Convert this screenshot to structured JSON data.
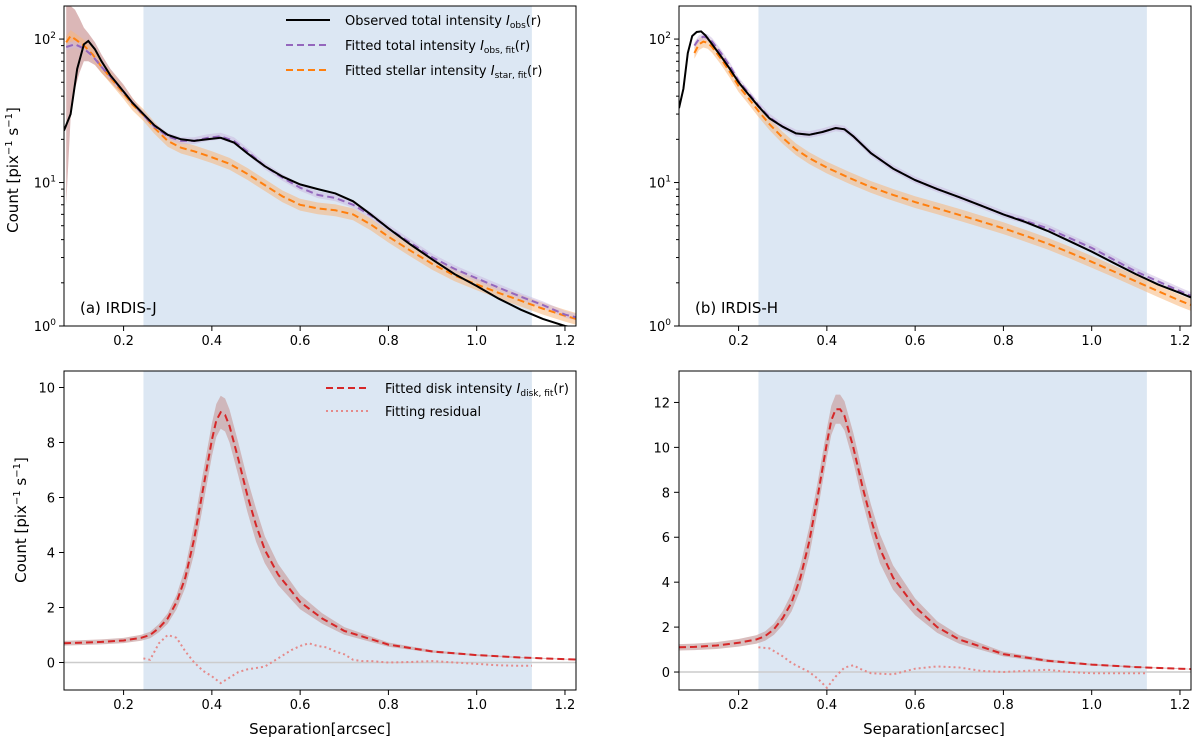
{
  "figure": {
    "xlabel": "Separation[arcsec]",
    "ylabel_parts": {
      "count": "Count [pix",
      "exp": "−1",
      "s": " s",
      "end": "]"
    },
    "colors": {
      "shade": "#dce7f3",
      "observed": "#000000",
      "fitted_total": "#9467bd",
      "fitted_star": "#ff7f0e",
      "fitted_star_band": "#f7b77a",
      "observed_band": "#bd7b7b",
      "disk": "#d62728",
      "disk_band": "#c9a3a3",
      "residual": "#e58a8a",
      "zero_line": "#cccccc"
    }
  },
  "legend_top": [
    {
      "key": "observed",
      "text": "Observed total intensity ",
      "sym": "I",
      "sub": "obs",
      "arg": "(r)"
    },
    {
      "key": "fitted_total",
      "text": "Fitted total intensity ",
      "sym": "I",
      "sub": "obs, fit",
      "arg": "(r)"
    },
    {
      "key": "fitted_star",
      "text": "Fitted stellar intensity ",
      "sym": "I",
      "sub": "star, fit",
      "arg": "(r)"
    }
  ],
  "legend_bottom": [
    {
      "key": "disk",
      "text": "Fitted disk intensity ",
      "sym": "I",
      "sub": "disk, fit",
      "arg": "(r)"
    },
    {
      "key": "residual",
      "text": "Fitting residual",
      "sym": "",
      "sub": "",
      "arg": ""
    }
  ],
  "chart_data": [
    {
      "type": "line",
      "panel": "top-left",
      "label": "(a) IRDIS-J",
      "xlim": [
        0.065,
        1.225
      ],
      "ylim": [
        1,
        170
      ],
      "yscale": "log",
      "xticks": [
        "0.2",
        "0.4",
        "0.6",
        "0.8",
        "1.0",
        "1.2"
      ],
      "yticks": [
        "10^0",
        "10^1",
        "10^2"
      ],
      "shaded_region": [
        0.245,
        1.125
      ],
      "series": [
        {
          "name": "Observed total intensity",
          "x": [
            0.065,
            0.08,
            0.095,
            0.11,
            0.12,
            0.135,
            0.15,
            0.17,
            0.2,
            0.22,
            0.245,
            0.27,
            0.3,
            0.33,
            0.36,
            0.39,
            0.42,
            0.45,
            0.48,
            0.52,
            0.56,
            0.6,
            0.64,
            0.68,
            0.72,
            0.76,
            0.8,
            0.85,
            0.9,
            0.95,
            1.0,
            1.05,
            1.1,
            1.15,
            1.2,
            1.225
          ],
          "y": [
            23,
            30,
            62,
            92,
            97,
            85,
            70,
            56,
            43,
            36,
            30,
            25,
            21.5,
            20,
            19.5,
            20,
            20.5,
            19,
            16,
            13,
            11,
            9.7,
            9,
            8.4,
            7.4,
            6,
            4.8,
            3.7,
            2.9,
            2.3,
            1.9,
            1.55,
            1.3,
            1.12,
            1.0,
            0.97
          ]
        },
        {
          "name": "Fitted total intensity",
          "x": [
            0.07,
            0.09,
            0.11,
            0.13,
            0.15,
            0.17,
            0.2,
            0.22,
            0.245,
            0.27,
            0.3,
            0.33,
            0.36,
            0.39,
            0.42,
            0.45,
            0.48,
            0.52,
            0.56,
            0.6,
            0.64,
            0.68,
            0.72,
            0.76,
            0.8,
            0.85,
            0.9,
            0.95,
            1.0,
            1.05,
            1.1,
            1.15,
            1.2,
            1.225
          ],
          "y": [
            88,
            92,
            86,
            76,
            64,
            55,
            43,
            36,
            29.5,
            24.5,
            21,
            19.5,
            19.5,
            20.5,
            21,
            19.5,
            16.5,
            13,
            10.8,
            9.2,
            8.2,
            7.8,
            7,
            5.9,
            4.8,
            3.8,
            3.0,
            2.5,
            2.15,
            1.85,
            1.6,
            1.4,
            1.2,
            1.15
          ]
        },
        {
          "name": "Fitted stellar intensity",
          "x": [
            0.07,
            0.08,
            0.09,
            0.11,
            0.13,
            0.15,
            0.17,
            0.2,
            0.22,
            0.245,
            0.27,
            0.3,
            0.33,
            0.36,
            0.4,
            0.44,
            0.48,
            0.52,
            0.56,
            0.6,
            0.64,
            0.68,
            0.72,
            0.76,
            0.8,
            0.85,
            0.9,
            0.95,
            1.0,
            1.05,
            1.1,
            1.15,
            1.2,
            1.225
          ],
          "y": [
            95,
            105,
            100,
            90,
            78,
            64,
            54,
            42,
            35,
            29.5,
            24,
            19.5,
            17.5,
            16.5,
            15,
            13.5,
            11.5,
            9.6,
            8,
            7,
            6.6,
            6.4,
            6,
            5.1,
            4.2,
            3.35,
            2.7,
            2.25,
            1.95,
            1.7,
            1.5,
            1.32,
            1.18,
            1.12
          ]
        }
      ],
      "observed_band": {
        "x": [
          0.07,
          0.08,
          0.09,
          0.1,
          0.11,
          0.12,
          0.135,
          0.15,
          0.17,
          0.2,
          0.22,
          0.245
        ],
        "upper": [
          170,
          170,
          160,
          140,
          120,
          110,
          95,
          78,
          62,
          48,
          39,
          31
        ],
        "lower": [
          7,
          28,
          45,
          58,
          70,
          70,
          66,
          58,
          50,
          40,
          34,
          29
        ]
      }
    },
    {
      "type": "line",
      "panel": "top-right",
      "label": "(b) IRDIS-H",
      "xlim": [
        0.065,
        1.225
      ],
      "ylim": [
        1,
        170
      ],
      "yscale": "log",
      "xticks": [
        "0.2",
        "0.4",
        "0.6",
        "0.8",
        "1.0",
        "1.2"
      ],
      "yticks": [
        "10^0",
        "10^1",
        "10^2"
      ],
      "shaded_region": [
        0.245,
        1.125
      ],
      "series": [
        {
          "name": "Observed total intensity",
          "x": [
            0.065,
            0.075,
            0.085,
            0.095,
            0.105,
            0.115,
            0.125,
            0.14,
            0.16,
            0.18,
            0.2,
            0.22,
            0.245,
            0.27,
            0.3,
            0.33,
            0.36,
            0.39,
            0.42,
            0.44,
            0.46,
            0.5,
            0.55,
            0.6,
            0.65,
            0.7,
            0.75,
            0.8,
            0.85,
            0.9,
            0.95,
            1.0,
            1.05,
            1.1,
            1.15,
            1.2,
            1.225
          ],
          "y": [
            33,
            45,
            80,
            105,
            112,
            113,
            106,
            92,
            76,
            62,
            50,
            42,
            34,
            28,
            24.5,
            22,
            21.5,
            22.5,
            24,
            23.5,
            21,
            16,
            12.5,
            10.4,
            9,
            7.9,
            6.9,
            6.0,
            5.3,
            4.6,
            3.9,
            3.3,
            2.75,
            2.3,
            1.95,
            1.7,
            1.58
          ]
        },
        {
          "name": "Fitted total intensity",
          "x": [
            0.1,
            0.11,
            0.12,
            0.13,
            0.14,
            0.16,
            0.18,
            0.2,
            0.22,
            0.245,
            0.27,
            0.3,
            0.33,
            0.36,
            0.39,
            0.42,
            0.44,
            0.46,
            0.5,
            0.55,
            0.6,
            0.65,
            0.7,
            0.75,
            0.8,
            0.85,
            0.9,
            0.95,
            1.0,
            1.05,
            1.1,
            1.15,
            1.2,
            1.225
          ],
          "y": [
            90,
            100,
            104,
            102,
            96,
            80,
            65,
            51,
            43,
            34.5,
            28.5,
            24.5,
            22,
            21.5,
            22.5,
            24,
            23.5,
            21,
            16,
            12.5,
            10.4,
            9,
            7.9,
            6.9,
            6.0,
            5.4,
            4.8,
            4.1,
            3.5,
            2.9,
            2.4,
            2.05,
            1.75,
            1.62
          ]
        },
        {
          "name": "Fitted stellar intensity",
          "x": [
            0.1,
            0.11,
            0.12,
            0.13,
            0.14,
            0.16,
            0.18,
            0.2,
            0.22,
            0.245,
            0.27,
            0.3,
            0.33,
            0.36,
            0.4,
            0.45,
            0.5,
            0.55,
            0.6,
            0.65,
            0.7,
            0.75,
            0.8,
            0.85,
            0.9,
            0.95,
            1.0,
            1.05,
            1.1,
            1.15,
            1.2,
            1.225
          ],
          "y": [
            80,
            92,
            96,
            94,
            88,
            73,
            59,
            47,
            39.5,
            31.5,
            25.5,
            20.5,
            17,
            14.8,
            12.7,
            10.8,
            9.3,
            8.2,
            7.3,
            6.6,
            5.95,
            5.35,
            4.8,
            4.25,
            3.75,
            3.25,
            2.8,
            2.4,
            2.05,
            1.75,
            1.5,
            1.4
          ]
        }
      ]
    },
    {
      "type": "line",
      "panel": "bottom-left",
      "label": "",
      "xlim": [
        0.065,
        1.225
      ],
      "ylim": [
        -1.0,
        10.6
      ],
      "yscale": "linear",
      "xticks": [
        "0.2",
        "0.4",
        "0.6",
        "0.8",
        "1.0",
        "1.2"
      ],
      "yticks": [
        "0",
        "2",
        "4",
        "6",
        "8",
        "10"
      ],
      "shaded_region": [
        0.245,
        1.125
      ],
      "series": [
        {
          "name": "Fitted disk intensity",
          "x": [
            0.065,
            0.1,
            0.15,
            0.2,
            0.24,
            0.26,
            0.28,
            0.3,
            0.32,
            0.34,
            0.36,
            0.38,
            0.4,
            0.41,
            0.42,
            0.43,
            0.44,
            0.46,
            0.48,
            0.5,
            0.52,
            0.55,
            0.6,
            0.65,
            0.7,
            0.8,
            0.9,
            1.0,
            1.1,
            1.2,
            1.225
          ],
          "y": [
            0.7,
            0.72,
            0.75,
            0.8,
            0.9,
            1.0,
            1.25,
            1.6,
            2.2,
            3.1,
            4.5,
            6.3,
            8.1,
            8.8,
            9.1,
            9.0,
            8.6,
            7.4,
            6.1,
            5.0,
            4.1,
            3.2,
            2.2,
            1.6,
            1.15,
            0.65,
            0.4,
            0.27,
            0.18,
            0.12,
            0.11
          ]
        },
        {
          "name": "Fitting residual",
          "x": [
            0.245,
            0.26,
            0.28,
            0.3,
            0.32,
            0.34,
            0.36,
            0.38,
            0.4,
            0.42,
            0.44,
            0.46,
            0.48,
            0.5,
            0.52,
            0.54,
            0.56,
            0.58,
            0.6,
            0.62,
            0.64,
            0.66,
            0.68,
            0.7,
            0.72,
            0.74,
            0.76,
            0.8,
            0.85,
            0.9,
            0.95,
            1.0,
            1.05,
            1.1,
            1.125
          ],
          "y": [
            0.15,
            0.1,
            0.7,
            1.0,
            0.9,
            0.4,
            0.0,
            -0.3,
            -0.5,
            -0.75,
            -0.55,
            -0.35,
            -0.25,
            -0.2,
            -0.15,
            0.05,
            0.25,
            0.45,
            0.6,
            0.7,
            0.6,
            0.55,
            0.4,
            0.3,
            0.1,
            0.05,
            0.05,
            0.0,
            0.02,
            0.05,
            0.0,
            -0.05,
            -0.1,
            -0.12,
            -0.12
          ]
        }
      ],
      "disk_band": {
        "upper_delta": 0.6
      }
    },
    {
      "type": "line",
      "panel": "bottom-right",
      "label": "",
      "xlim": [
        0.065,
        1.225
      ],
      "ylim": [
        -0.8,
        13.4
      ],
      "yscale": "linear",
      "xticks": [
        "0.2",
        "0.4",
        "0.6",
        "0.8",
        "1.0",
        "1.2"
      ],
      "yticks": [
        "0",
        "2",
        "4",
        "6",
        "8",
        "10",
        "12"
      ],
      "shaded_region": [
        0.245,
        1.125
      ],
      "series": [
        {
          "name": "Fitted disk intensity",
          "x": [
            0.065,
            0.1,
            0.15,
            0.2,
            0.24,
            0.26,
            0.28,
            0.3,
            0.32,
            0.34,
            0.36,
            0.38,
            0.4,
            0.41,
            0.42,
            0.43,
            0.44,
            0.46,
            0.48,
            0.5,
            0.52,
            0.55,
            0.6,
            0.65,
            0.7,
            0.8,
            0.9,
            1.0,
            1.1,
            1.2,
            1.225
          ],
          "y": [
            1.1,
            1.12,
            1.18,
            1.3,
            1.45,
            1.6,
            1.9,
            2.4,
            3.1,
            4.2,
            5.8,
            7.9,
            10.2,
            11.2,
            11.7,
            11.7,
            11.4,
            10.0,
            8.3,
            6.8,
            5.5,
            4.2,
            2.9,
            2.0,
            1.45,
            0.8,
            0.5,
            0.33,
            0.22,
            0.15,
            0.13
          ]
        },
        {
          "name": "Fitting residual",
          "x": [
            0.245,
            0.27,
            0.3,
            0.32,
            0.34,
            0.36,
            0.38,
            0.4,
            0.42,
            0.44,
            0.46,
            0.48,
            0.5,
            0.55,
            0.6,
            0.65,
            0.7,
            0.75,
            0.8,
            0.85,
            0.9,
            0.95,
            1.0,
            1.05,
            1.1,
            1.125
          ],
          "y": [
            1.1,
            1.05,
            0.7,
            0.4,
            0.2,
            0.0,
            -0.3,
            -0.7,
            -0.2,
            0.2,
            0.3,
            0.1,
            -0.05,
            -0.1,
            0.15,
            0.25,
            0.2,
            0.05,
            0.0,
            0.05,
            0.1,
            0.0,
            -0.05,
            -0.05,
            -0.05,
            -0.05
          ]
        }
      ],
      "disk_band": {
        "upper_delta": 0.65
      }
    }
  ]
}
